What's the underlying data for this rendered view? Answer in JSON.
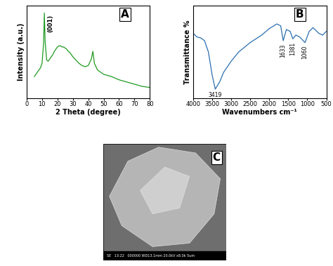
{
  "chart_data": [
    {
      "type": "line",
      "panel": "A",
      "x_label": "2 Theta (degree)",
      "y_label": "Intensity (a.u.)",
      "x": [
        5,
        6,
        7,
        8,
        9,
        10,
        11,
        11.5,
        12,
        13,
        14,
        15,
        16,
        17,
        18,
        19,
        20,
        21,
        22,
        23,
        24,
        25,
        26,
        27,
        28,
        29,
        30,
        32,
        34,
        36,
        38,
        40,
        42,
        43,
        44,
        46,
        48,
        50,
        55,
        60,
        65,
        70,
        75,
        80
      ],
      "values": [
        40,
        42,
        44,
        46,
        48,
        52,
        70,
        98,
        72,
        55,
        54,
        56,
        58,
        60,
        63,
        65,
        67,
        68,
        68,
        67,
        67,
        66,
        65,
        63,
        62,
        60,
        58,
        55,
        52,
        50,
        49,
        50,
        56,
        63,
        52,
        46,
        44,
        42,
        40,
        37,
        35,
        33,
        31,
        30
      ],
      "color": "#1f9a1f",
      "xlim": [
        0,
        80
      ],
      "xticks": [
        0,
        10,
        20,
        30,
        40,
        50,
        60,
        70,
        80
      ],
      "ylim": [
        20,
        105
      ],
      "yticks": [],
      "tick_labels": "x",
      "annotations": [
        {
          "x": 11.5,
          "text": "(001)"
        }
      ]
    },
    {
      "type": "line",
      "panel": "B",
      "x_label": "Wavenumbers cm⁻¹",
      "y_label": "Transmittance %",
      "x": [
        4000,
        3900,
        3800,
        3700,
        3600,
        3500,
        3419,
        3300,
        3200,
        3000,
        2800,
        2500,
        2200,
        2000,
        1800,
        1700,
        1633,
        1550,
        1450,
        1381,
        1300,
        1200,
        1060,
        950,
        850,
        700,
        600,
        500
      ],
      "values": [
        70,
        66,
        65,
        62,
        50,
        25,
        10,
        18,
        28,
        40,
        50,
        60,
        68,
        75,
        80,
        78,
        62,
        74,
        72,
        64,
        68,
        66,
        60,
        72,
        76,
        70,
        68,
        72
      ],
      "color": "#2a6fb0",
      "xlim": [
        4000,
        500
      ],
      "xticks": [
        4000,
        3500,
        3000,
        2500,
        2000,
        1500,
        1000,
        500
      ],
      "ylim": [
        0,
        100
      ],
      "yticks": [],
      "tick_labels": "x",
      "annotations": [
        {
          "x": 3419,
          "text": "3419"
        },
        {
          "x": 1633,
          "text": "1633"
        },
        {
          "x": 1381,
          "text": "1381"
        },
        {
          "x": 1060,
          "text": "1060"
        }
      ]
    }
  ],
  "image": {
    "panel": "C",
    "caption_bar": "SE   13:22   000000 WD13.1mm 20.0kV x8.0k 5um"
  }
}
